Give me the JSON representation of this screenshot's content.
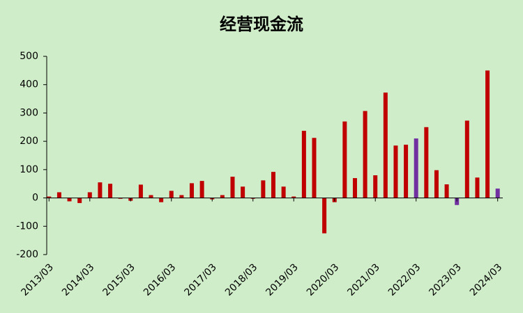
{
  "chart_data": {
    "type": "bar",
    "title": "经营现金流",
    "categories": [
      "2013/03",
      null,
      null,
      null,
      "2014/03",
      null,
      null,
      null,
      "2015/03",
      null,
      null,
      null,
      "2016/03",
      null,
      null,
      null,
      "2017/03",
      null,
      null,
      null,
      "2018/03",
      null,
      null,
      null,
      "2019/03",
      null,
      null,
      null,
      "2020/03",
      null,
      null,
      null,
      "2021/03",
      null,
      null,
      null,
      "2022/03",
      null,
      null,
      null,
      "2023/03",
      null,
      null,
      null,
      "2024/03"
    ],
    "values": [
      5,
      20,
      -12,
      -18,
      20,
      55,
      50,
      -3,
      -10,
      47,
      10,
      -15,
      25,
      10,
      52,
      60,
      -5,
      10,
      75,
      40,
      -3,
      62,
      92,
      40,
      5,
      237,
      212,
      -125,
      -15,
      270,
      70,
      307,
      80,
      372,
      185,
      188,
      210,
      250,
      98,
      48,
      -25,
      273,
      72,
      450,
      33
    ],
    "colors": [
      "#c00000",
      "#c00000",
      "#c00000",
      "#c00000",
      "#c00000",
      "#c00000",
      "#c00000",
      "#c00000",
      "#c00000",
      "#c00000",
      "#c00000",
      "#c00000",
      "#c00000",
      "#c00000",
      "#c00000",
      "#c00000",
      "#c00000",
      "#c00000",
      "#c00000",
      "#c00000",
      "#c00000",
      "#c00000",
      "#c00000",
      "#c00000",
      "#c00000",
      "#c00000",
      "#c00000",
      "#c00000",
      "#c00000",
      "#c00000",
      "#c00000",
      "#c00000",
      "#c00000",
      "#c00000",
      "#c00000",
      "#c00000",
      "#7030a0",
      "#c00000",
      "#c00000",
      "#c00000",
      "#7030a0",
      "#c00000",
      "#c00000",
      "#c00000",
      "#7030a0"
    ],
    "ylim": [
      -200,
      500
    ],
    "yticks": [
      -200,
      -100,
      0,
      100,
      200,
      300,
      400,
      500
    ]
  }
}
